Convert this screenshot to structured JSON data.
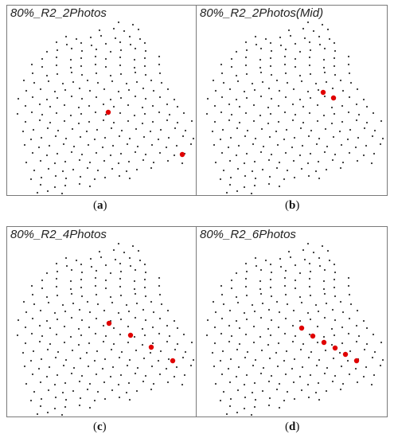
{
  "colors": {
    "point": "#333333",
    "highlight": "#e00000",
    "border": "#7a7a7a"
  },
  "panels": [
    {
      "title": "80%_R2_2Photos",
      "caption_open": "(",
      "caption_letter": "a",
      "caption_close": ")",
      "red_points": [
        [
          127,
          134
        ],
        [
          220,
          187
        ]
      ]
    },
    {
      "title": "80%_R2_2Photos(Mid)",
      "caption_open": "(",
      "caption_letter": "b",
      "caption_close": ")",
      "red_points": [
        [
          159,
          109
        ],
        [
          172,
          116
        ]
      ]
    },
    {
      "title": "80%_R2_4Photos",
      "caption_open": "(",
      "caption_letter": "c",
      "caption_close": ")",
      "red_points": [
        [
          128,
          121
        ],
        [
          155,
          136
        ],
        [
          181,
          151
        ],
        [
          208,
          168
        ]
      ]
    },
    {
      "title": "80%_R2_6Photos",
      "caption_open": "(",
      "caption_letter": "d",
      "caption_close": ")",
      "red_points": [
        [
          132,
          127
        ],
        [
          146,
          137
        ],
        [
          160,
          145
        ],
        [
          174,
          152
        ],
        [
          187,
          160
        ],
        [
          201,
          168
        ]
      ]
    }
  ]
}
